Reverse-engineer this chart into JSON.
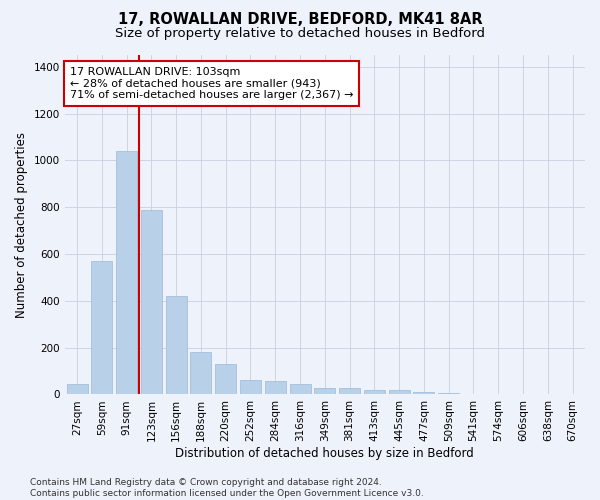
{
  "title": "17, ROWALLAN DRIVE, BEDFORD, MK41 8AR",
  "subtitle": "Size of property relative to detached houses in Bedford",
  "xlabel": "Distribution of detached houses by size in Bedford",
  "ylabel": "Number of detached properties",
  "categories": [
    "27sqm",
    "59sqm",
    "91sqm",
    "123sqm",
    "156sqm",
    "188sqm",
    "220sqm",
    "252sqm",
    "284sqm",
    "316sqm",
    "349sqm",
    "381sqm",
    "413sqm",
    "445sqm",
    "477sqm",
    "509sqm",
    "541sqm",
    "574sqm",
    "606sqm",
    "638sqm",
    "670sqm"
  ],
  "values": [
    45,
    570,
    1040,
    790,
    420,
    180,
    128,
    60,
    58,
    45,
    27,
    27,
    18,
    18,
    12,
    8,
    0,
    0,
    0,
    0,
    0
  ],
  "bar_color": "#b8d0e8",
  "bar_edge_color": "#9ab8d8",
  "vline_x_index": 2,
  "vline_color": "#cc0000",
  "annotation_line1": "17 ROWALLAN DRIVE: 103sqm",
  "annotation_line2": "← 28% of detached houses are smaller (943)",
  "annotation_line3": "71% of semi-detached houses are larger (2,367) →",
  "annotation_box_facecolor": "#ffffff",
  "annotation_box_edgecolor": "#cc0000",
  "ylim": [
    0,
    1450
  ],
  "yticks": [
    0,
    200,
    400,
    600,
    800,
    1000,
    1200,
    1400
  ],
  "footer": "Contains HM Land Registry data © Crown copyright and database right 2024.\nContains public sector information licensed under the Open Government Licence v3.0.",
  "bg_color": "#eef2fa",
  "plot_bg_color": "#eef2fa",
  "grid_color": "#c8cfe0",
  "title_fontsize": 10.5,
  "subtitle_fontsize": 9.5,
  "axis_label_fontsize": 8.5,
  "tick_fontsize": 7.5,
  "footer_fontsize": 6.5,
  "annotation_fontsize": 8
}
